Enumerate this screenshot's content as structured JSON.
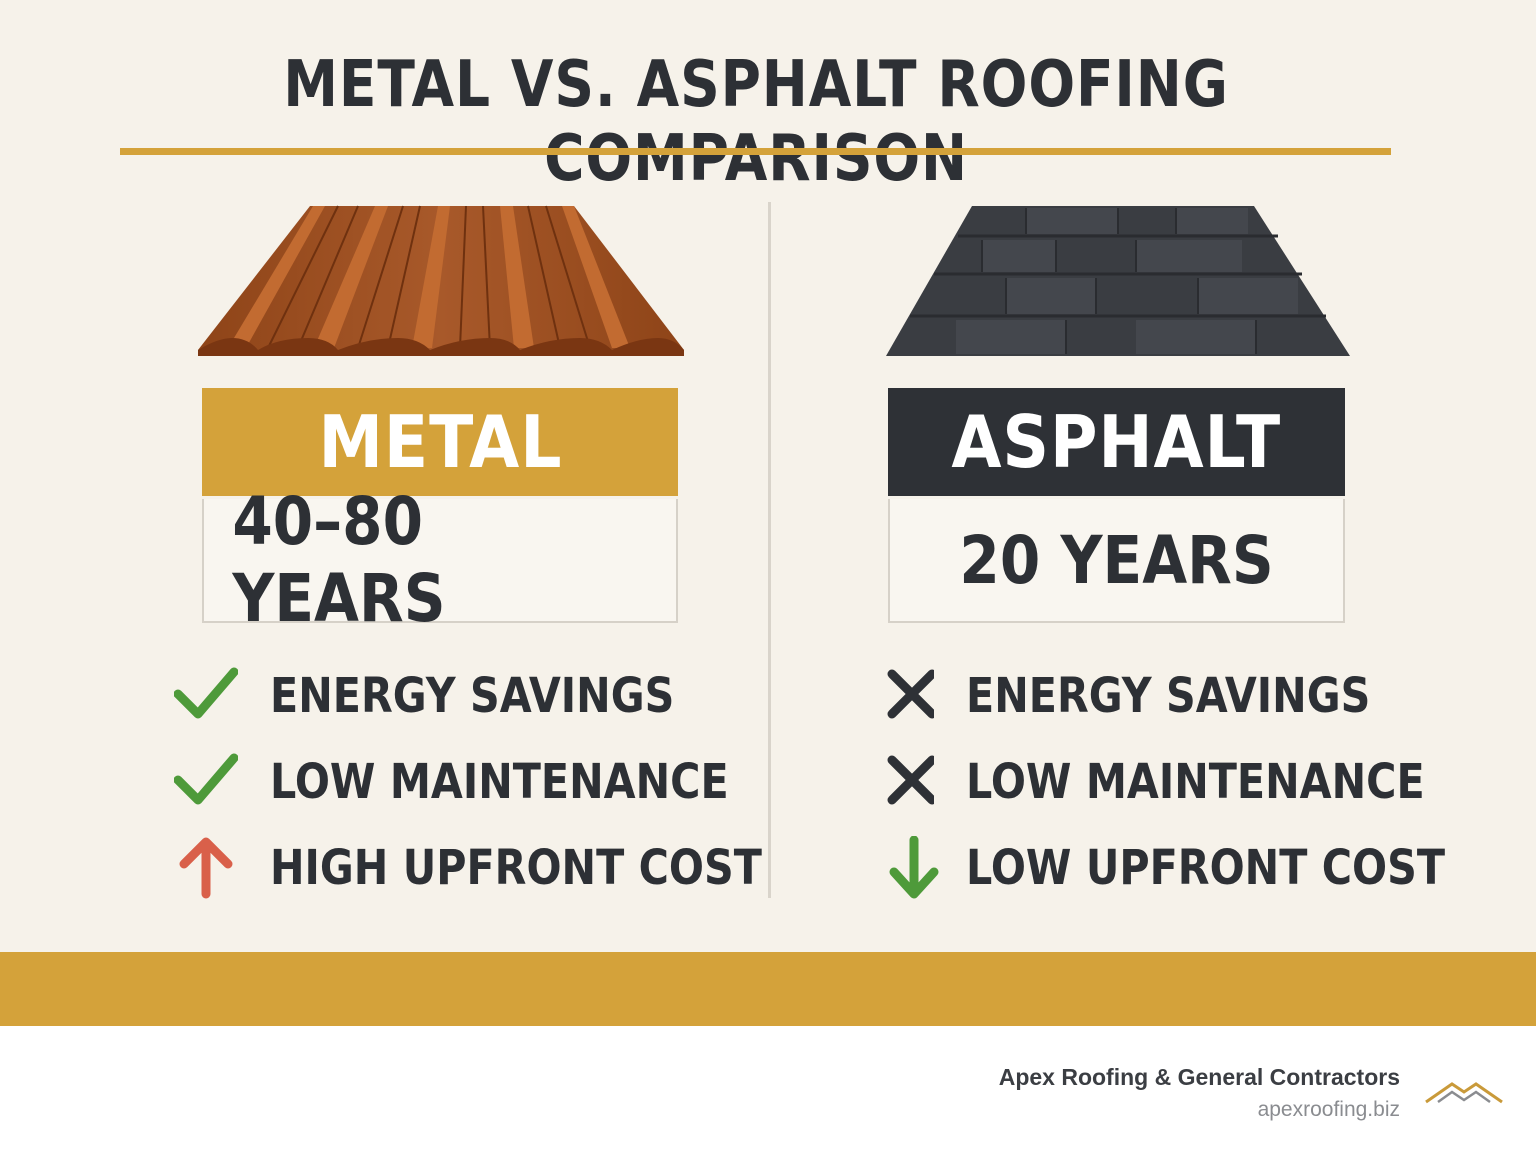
{
  "title": "METAL VS. ASPHALT ROOFING COMPARISON",
  "colors": {
    "accent_gold": "#d4a23a",
    "dark": "#2e3136",
    "check_green": "#4e9a3a",
    "up_arrow_red": "#d9604a",
    "down_arrow_green": "#4e9a3a",
    "metal_roof": "#9c4e1d"
  },
  "metal": {
    "name": "METAL",
    "lifespan": "40–80 YEARS",
    "features": [
      {
        "label": "ENERGY SAVINGS",
        "icon": "check-icon"
      },
      {
        "label": "LOW MAINTENANCE",
        "icon": "check-icon"
      },
      {
        "label": "HIGH UPFRONT COST",
        "icon": "arrow-up-icon"
      }
    ]
  },
  "asphalt": {
    "name": "ASPHALT",
    "lifespan": "20 YEARS",
    "features": [
      {
        "label": "ENERGY SAVINGS",
        "icon": "x-icon"
      },
      {
        "label": "LOW MAINTENANCE",
        "icon": "x-icon"
      },
      {
        "label": "LOW UPFRONT COST",
        "icon": "arrow-down-icon"
      }
    ]
  },
  "footer": {
    "company": "Apex Roofing & General Contractors",
    "website": "apexroofing.biz"
  }
}
